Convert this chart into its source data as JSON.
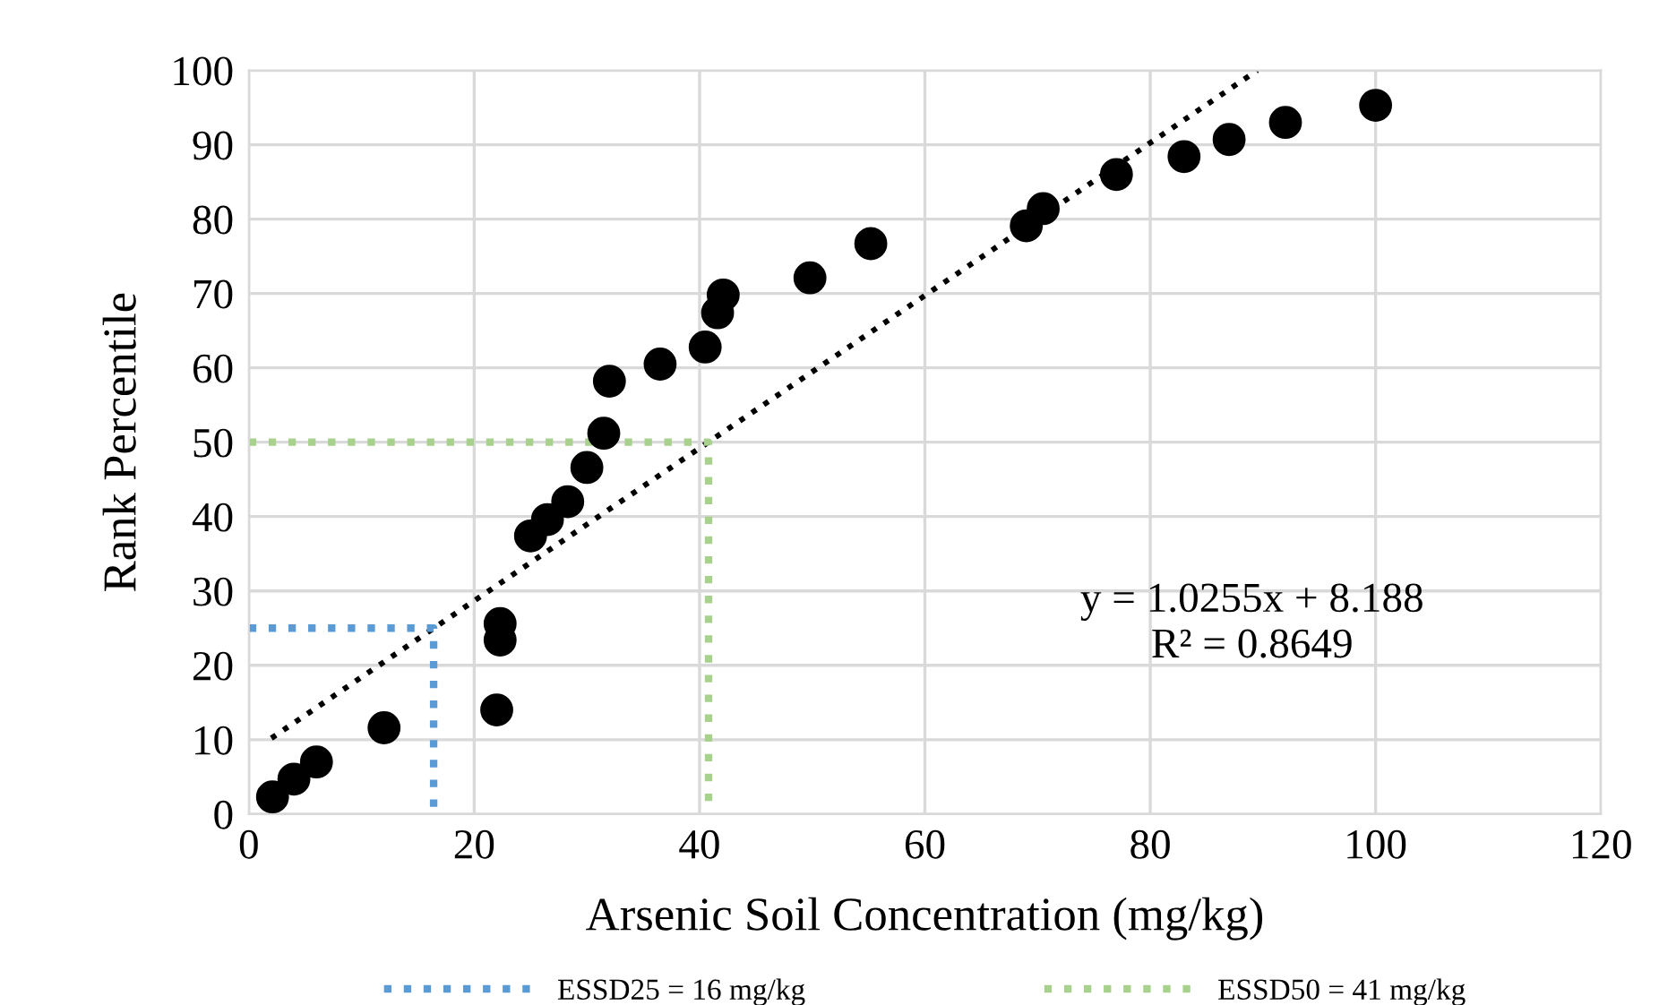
{
  "chart_data": {
    "type": "scatter",
    "xlabel": "Arsenic Soil Concentration (mg/kg)",
    "ylabel": "Rank Percentile",
    "xlim": [
      0,
      120
    ],
    "ylim": [
      0,
      100
    ],
    "xticks": [
      0,
      20,
      40,
      60,
      80,
      100,
      120
    ],
    "yticks": [
      0,
      10,
      20,
      30,
      40,
      50,
      60,
      70,
      80,
      90,
      100
    ],
    "grid": true,
    "legend": "bottom",
    "annotations": [
      "y = 1.0255x + 8.188\nR² = 0.8649"
    ],
    "series": [
      {
        "color": "#000000",
        "marker": "circle",
        "x": [
          2.1,
          4,
          6,
          12,
          22,
          22.3,
          22.3,
          25,
          26.5,
          28.3,
          30,
          31.5,
          32,
          36.5,
          40.5,
          41.6,
          42.1,
          49.8,
          55.2,
          69,
          70.5,
          77,
          83,
          87,
          92,
          100
        ],
        "values": [
          2.3,
          4.7,
          7,
          11.6,
          14,
          23.4,
          25.6,
          37.4,
          39.6,
          42,
          46.6,
          51.2,
          58.2,
          60.5,
          62.8,
          67.4,
          69.8,
          72.1,
          76.7,
          79.1,
          81.4,
          86,
          88.4,
          90.7,
          93,
          95.3
        ]
      },
      {
        "type": "line",
        "color": "#000000",
        "line_style": "dotted",
        "x": [
          2,
          89.5
        ],
        "values": [
          10.2,
          100
        ]
      },
      {
        "type": "line",
        "name": "ESSD25 = 16 mg/kg",
        "color": "#5b9bd5",
        "line_style": "dotted",
        "x": [
          0,
          16.4,
          16.4
        ],
        "values": [
          25,
          25,
          0
        ]
      },
      {
        "type": "line",
        "name": "ESSD50 = 41 mg/kg",
        "color": "#a9d18e",
        "line_style": "dotted",
        "x": [
          0,
          40.8,
          40.8
        ],
        "values": [
          50,
          50,
          0
        ]
      }
    ]
  }
}
